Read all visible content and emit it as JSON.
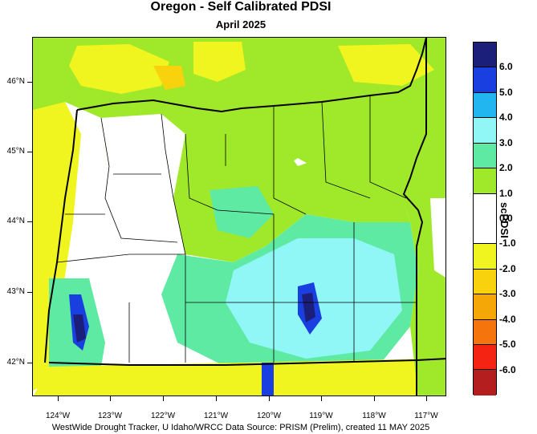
{
  "title": "Oregon - Self Calibrated PDSI",
  "subtitle": "April 2025",
  "footer": "WestWide Drought Tracker, U Idaho/WRCC Data Source: PRISM (Prelim), created 11 MAY 2025",
  "axes": {
    "lat_labels": [
      "46°N",
      "45°N",
      "44°N",
      "43°N",
      "42°N"
    ],
    "lon_labels": [
      "124°W",
      "123°W",
      "122°W",
      "121°W",
      "120°W",
      "119°W",
      "118°W",
      "117°W"
    ]
  },
  "legend": {
    "title": "scPDSI",
    "labels": [
      "6.0",
      "5.0",
      "4.0",
      "3.0",
      "2.0",
      "1.0",
      "0.0",
      "-1.0",
      "-2.0",
      "-3.0",
      "-4.0",
      "-5.0",
      "-6.0"
    ],
    "colors": [
      "#1c1f7a",
      "#1a3fe0",
      "#22b6f0",
      "#90f6f6",
      "#5eeaa2",
      "#9fe82a",
      "#ffffff",
      "#ffffff",
      "#f1f51f",
      "#f9d20e",
      "#f4a706",
      "#f5740c",
      "#f52412",
      "#b51e1e"
    ]
  }
}
